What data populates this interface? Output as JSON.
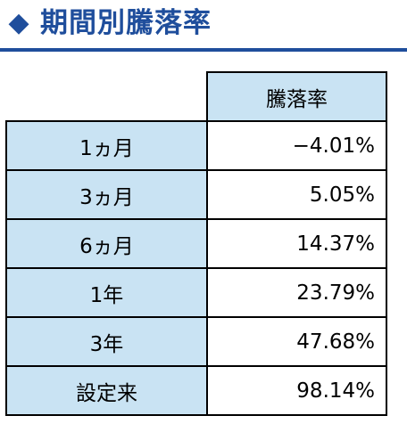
{
  "header": {
    "icon": "diamond-icon",
    "title": "期間別騰落率",
    "accent_color": "#1f4e9c"
  },
  "table": {
    "column_header": "騰落率",
    "header_bg": "#c9e3f3",
    "rows": [
      {
        "period": "1ヵ月",
        "value": "−4.01%"
      },
      {
        "period": "3ヵ月",
        "value": "5.05%"
      },
      {
        "period": "6ヵ月",
        "value": "14.37%"
      },
      {
        "period": "1年",
        "value": "23.79%"
      },
      {
        "period": "3年",
        "value": "47.68%"
      },
      {
        "period": "設定来",
        "value": "98.14%"
      }
    ]
  }
}
